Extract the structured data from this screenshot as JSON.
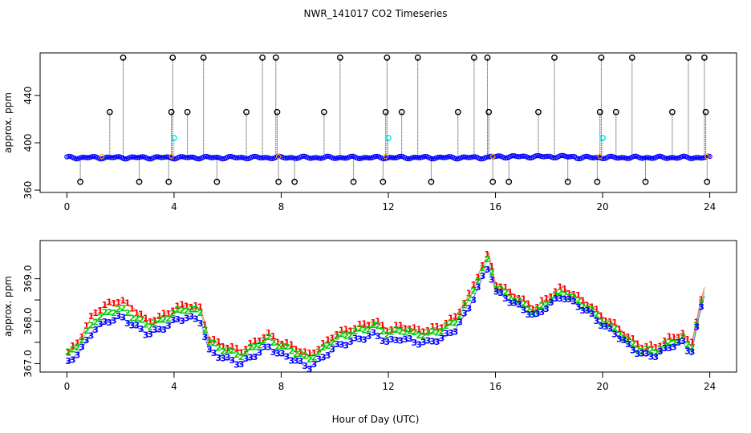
{
  "chart_data": [
    {
      "type": "scatter",
      "title": "NWR_141017  CO2 Timeseries",
      "xlabel": "",
      "ylabel": "approx. ppm",
      "xlim": [
        -1,
        25
      ],
      "ylim": [
        358,
        476
      ],
      "xticks": [
        0,
        4,
        8,
        12,
        16,
        20,
        24
      ],
      "yticks": [
        360,
        400,
        440
      ],
      "xtick_labels": [
        "0",
        "4",
        "8",
        "12",
        "16",
        "20",
        "24"
      ],
      "ytick_labels": [
        "360",
        "400",
        "440"
      ],
      "colors": {
        "baseline": "#0000ff",
        "outlier": "#000000",
        "flag_mid": "#00e5ee",
        "flag_low": "#ffa500",
        "stem": "#000000"
      },
      "baseline_ppm": 387.5,
      "outliers": [
        {
          "x": 0.5,
          "y": 367
        },
        {
          "x": 1.6,
          "y": 426
        },
        {
          "x": 2.1,
          "y": 472
        },
        {
          "x": 2.7,
          "y": 367
        },
        {
          "x": 3.8,
          "y": 367
        },
        {
          "x": 3.9,
          "y": 426
        },
        {
          "x": 3.95,
          "y": 472
        },
        {
          "x": 4.5,
          "y": 426
        },
        {
          "x": 5.1,
          "y": 472
        },
        {
          "x": 5.6,
          "y": 367
        },
        {
          "x": 6.7,
          "y": 426
        },
        {
          "x": 7.3,
          "y": 472
        },
        {
          "x": 7.8,
          "y": 472
        },
        {
          "x": 7.85,
          "y": 426
        },
        {
          "x": 7.9,
          "y": 367
        },
        {
          "x": 8.5,
          "y": 367
        },
        {
          "x": 9.6,
          "y": 426
        },
        {
          "x": 10.2,
          "y": 472
        },
        {
          "x": 10.7,
          "y": 367
        },
        {
          "x": 11.8,
          "y": 367
        },
        {
          "x": 11.9,
          "y": 426
        },
        {
          "x": 11.95,
          "y": 472
        },
        {
          "x": 12.5,
          "y": 426
        },
        {
          "x": 13.1,
          "y": 472
        },
        {
          "x": 13.6,
          "y": 367
        },
        {
          "x": 14.6,
          "y": 426
        },
        {
          "x": 15.2,
          "y": 472
        },
        {
          "x": 15.7,
          "y": 472
        },
        {
          "x": 15.75,
          "y": 426
        },
        {
          "x": 15.9,
          "y": 367
        },
        {
          "x": 16.5,
          "y": 367
        },
        {
          "x": 17.6,
          "y": 426
        },
        {
          "x": 18.2,
          "y": 472
        },
        {
          "x": 18.7,
          "y": 367
        },
        {
          "x": 19.8,
          "y": 367
        },
        {
          "x": 19.9,
          "y": 426
        },
        {
          "x": 19.95,
          "y": 472
        },
        {
          "x": 20.5,
          "y": 426
        },
        {
          "x": 21.1,
          "y": 472
        },
        {
          "x": 21.6,
          "y": 367
        },
        {
          "x": 22.6,
          "y": 426
        },
        {
          "x": 23.2,
          "y": 472
        },
        {
          "x": 23.8,
          "y": 472
        },
        {
          "x": 23.85,
          "y": 426
        },
        {
          "x": 23.9,
          "y": 367
        }
      ],
      "mid_flags": [
        {
          "x": 4.0,
          "y": 404
        },
        {
          "x": 12.0,
          "y": 404
        },
        {
          "x": 20.0,
          "y": 404
        }
      ]
    },
    {
      "type": "line",
      "title": "",
      "xlabel": "Hour of Day (UTC)",
      "ylabel": "approx. ppm",
      "xlim": [
        -1,
        25
      ],
      "ylim": [
        366.8,
        369.9
      ],
      "xticks": [
        0,
        4,
        8,
        12,
        16,
        20,
        24
      ],
      "yticks": [
        367.0,
        367.5,
        368.0,
        368.5,
        369.0
      ],
      "xtick_labels": [
        "0",
        "4",
        "8",
        "12",
        "16",
        "20",
        "24"
      ],
      "ytick_labels": [
        "367.0",
        "",
        "368.0",
        "",
        "369.0"
      ],
      "x": [
        0.0,
        0.5,
        1.0,
        1.5,
        2.0,
        2.5,
        3.0,
        3.5,
        4.0,
        4.5,
        5.0,
        5.3,
        5.6,
        6.0,
        6.5,
        7.0,
        7.5,
        8.0,
        8.5,
        9.0,
        9.5,
        10.0,
        10.5,
        11.0,
        11.5,
        12.0,
        12.5,
        13.0,
        13.5,
        14.0,
        14.5,
        15.0,
        15.5,
        15.75,
        16.0,
        16.5,
        17.0,
        17.5,
        18.0,
        18.5,
        19.0,
        19.5,
        20.0,
        20.5,
        21.0,
        21.5,
        22.0,
        22.5,
        23.0,
        23.3,
        23.6,
        23.8
      ],
      "series": [
        {
          "name": "1",
          "color": "#ff0000",
          "values": [
            367.2,
            367.6,
            368.2,
            368.4,
            368.5,
            368.3,
            368.0,
            368.1,
            368.3,
            368.4,
            368.3,
            367.6,
            367.5,
            367.4,
            367.3,
            367.5,
            367.7,
            367.5,
            367.4,
            367.2,
            367.4,
            367.7,
            367.8,
            367.9,
            368.0,
            367.8,
            367.9,
            367.8,
            367.8,
            367.9,
            368.1,
            368.6,
            369.3,
            369.6,
            368.9,
            368.7,
            368.5,
            368.3,
            368.6,
            368.8,
            368.6,
            368.4,
            368.1,
            367.9,
            367.6,
            367.4,
            367.4,
            367.6,
            367.7,
            367.4,
            368.3,
            368.8
          ]
        },
        {
          "name": "2",
          "color": "#00cd00",
          "values": [
            367.2,
            367.5,
            368.0,
            368.2,
            368.3,
            368.1,
            367.9,
            368.0,
            368.2,
            368.3,
            368.2,
            367.5,
            367.4,
            367.3,
            367.2,
            367.4,
            367.6,
            367.4,
            367.3,
            367.1,
            367.3,
            367.6,
            367.7,
            367.8,
            367.9,
            367.7,
            367.8,
            367.7,
            367.7,
            367.8,
            368.0,
            368.5,
            369.2,
            369.5,
            368.8,
            368.6,
            368.4,
            368.2,
            368.5,
            368.7,
            368.5,
            368.3,
            368.0,
            367.8,
            367.5,
            367.3,
            367.3,
            367.5,
            367.6,
            367.3,
            368.2,
            368.7
          ]
        },
        {
          "name": "3",
          "color": "#0000ff",
          "values": [
            367.0,
            367.3,
            367.8,
            368.0,
            368.1,
            367.9,
            367.7,
            367.8,
            368.0,
            368.1,
            368.0,
            367.3,
            367.2,
            367.1,
            367.0,
            367.2,
            367.4,
            367.2,
            367.1,
            366.9,
            367.1,
            367.4,
            367.5,
            367.6,
            367.7,
            367.5,
            367.6,
            367.5,
            367.5,
            367.6,
            367.8,
            368.3,
            369.0,
            369.3,
            368.7,
            368.5,
            368.3,
            368.1,
            368.4,
            368.6,
            368.4,
            368.2,
            367.9,
            367.7,
            367.4,
            367.2,
            367.2,
            367.4,
            367.5,
            367.2,
            368.1,
            368.6
          ]
        }
      ]
    }
  ]
}
